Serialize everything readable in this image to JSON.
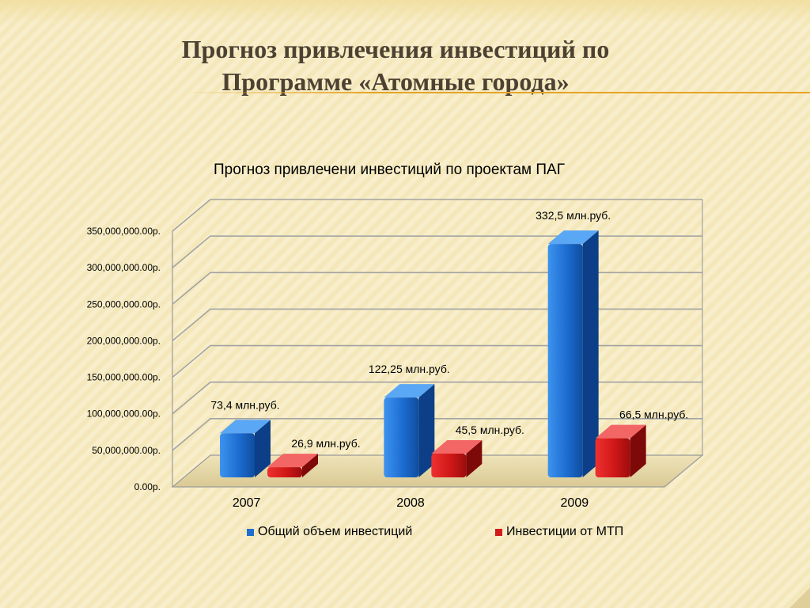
{
  "slide": {
    "title_line1": "Прогноз привлечения инвестиций по",
    "title_line2": "Программе «Атомные города»"
  },
  "colors": {
    "series1": "#1f6fd0",
    "series2": "#d21b1b",
    "accent": "#e7a328"
  },
  "chart_data": {
    "type": "bar",
    "title": "Прогноз привлечени инвестиций по проектам ПАГ",
    "categories": [
      "2007",
      "2008",
      "2009"
    ],
    "series": [
      {
        "name": "Общий объем инвестиций",
        "values": [
          73400000,
          122250000,
          332500000
        ],
        "labels": [
          "73,4 млн.руб.",
          "122,25 млн.руб.",
          "332,5 млн.руб."
        ]
      },
      {
        "name": "Инвестиции от МТП",
        "values": [
          26900000,
          45500000,
          66500000
        ],
        "labels": [
          "26,9 млн.руб.",
          "45,5 млн.руб.",
          "66,5 млн.руб."
        ]
      }
    ],
    "ylim": [
      0,
      350000000
    ],
    "yticks": [
      0,
      50000000,
      100000000,
      150000000,
      200000000,
      250000000,
      300000000,
      350000000
    ],
    "ytick_labels": [
      "0.00р.",
      "50,000,000.00р.",
      "100,000,000.00р.",
      "150,000,000.00р.",
      "200,000,000.00р.",
      "250,000,000.00р.",
      "300,000,000.00р.",
      "350,000,000.00р."
    ],
    "grid": true,
    "three_d": true,
    "legend_position": "bottom"
  }
}
